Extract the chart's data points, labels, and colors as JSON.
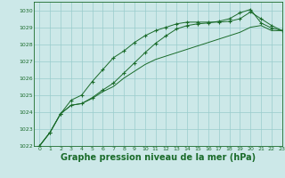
{
  "background_color": "#cce8e8",
  "grid_color": "#99cccc",
  "line_color": "#1a6b2a",
  "xlabel": "Graphe pression niveau de la mer (hPa)",
  "xlabel_fontsize": 7,
  "ylim": [
    1022,
    1030.5
  ],
  "xlim": [
    -0.5,
    23
  ],
  "yticks": [
    1022,
    1023,
    1024,
    1025,
    1026,
    1027,
    1028,
    1029,
    1030
  ],
  "xticks": [
    0,
    1,
    2,
    3,
    4,
    5,
    6,
    7,
    8,
    9,
    10,
    11,
    12,
    13,
    14,
    15,
    16,
    17,
    18,
    19,
    20,
    21,
    22,
    23
  ],
  "series": [
    [
      1022.0,
      1022.8,
      1023.9,
      1024.7,
      1025.0,
      1025.8,
      1026.5,
      1027.2,
      1027.6,
      1028.1,
      1028.5,
      1028.8,
      1029.0,
      1029.2,
      1029.3,
      1029.3,
      1029.3,
      1029.3,
      1029.35,
      1029.5,
      1029.9,
      1029.5,
      1029.1,
      1028.8
    ],
    [
      1022.0,
      1022.8,
      1023.9,
      1024.4,
      1024.5,
      1024.8,
      1025.2,
      1025.5,
      1026.0,
      1026.4,
      1026.8,
      1027.1,
      1027.3,
      1027.5,
      1027.7,
      1027.9,
      1028.1,
      1028.3,
      1028.5,
      1028.7,
      1029.0,
      1029.1,
      1028.8,
      1028.8
    ],
    [
      1022.0,
      1022.8,
      1023.9,
      1024.4,
      1024.5,
      1024.85,
      1025.3,
      1025.7,
      1026.3,
      1026.9,
      1027.5,
      1028.05,
      1028.5,
      1028.9,
      1029.1,
      1029.2,
      1029.25,
      1029.35,
      1029.5,
      1029.85,
      1030.05,
      1029.25,
      1028.95,
      1028.8
    ]
  ]
}
